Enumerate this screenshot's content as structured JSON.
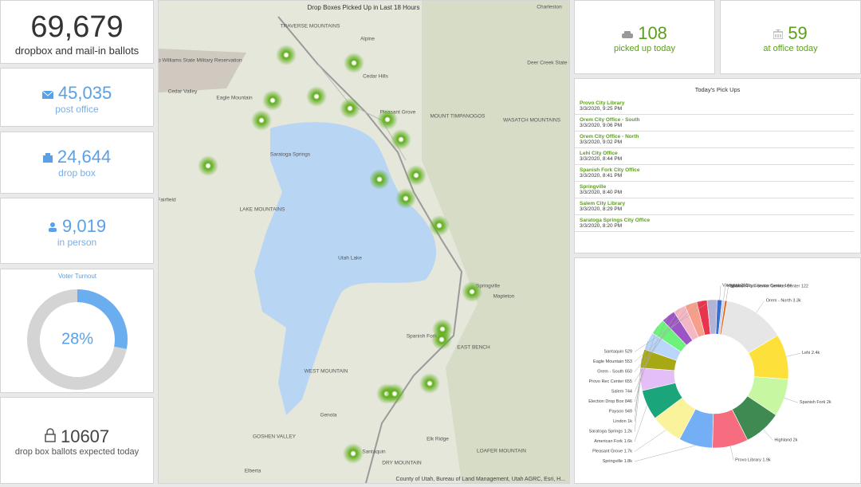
{
  "stats": {
    "total": {
      "value": "69,679",
      "label": "dropbox and mail-in ballots"
    },
    "post_office": {
      "value": "45,035",
      "label": "post office"
    },
    "drop_box": {
      "value": "24,644",
      "label": "drop box"
    },
    "in_person": {
      "value": "9,019",
      "label": "in person"
    },
    "expected": {
      "value": "10607",
      "label": "drop box ballots expected today"
    },
    "picked_up": {
      "value": "108",
      "label": "picked up today"
    },
    "at_office": {
      "value": "59",
      "label": "at office today"
    }
  },
  "turnout": {
    "title": "Voter Turnout",
    "value": 28,
    "value_label": "28%",
    "color": "#6aaef0",
    "track": "#d4d4d4"
  },
  "map": {
    "title": "Drop Boxes Picked Up in Last 18 Hours",
    "attribution": "County of Utah, Bureau of Land Management, Utah AGRC, Esri, H...",
    "labels": [
      "TRAVERSE MOUNTAINS",
      "Alpine",
      "Charleston",
      "Camp Williams State Military Reservation",
      "Cedar Valley",
      "Eagle Mountain",
      "Cedar Hills",
      "Deer Creek State Park",
      "Saratoga Springs",
      "Pleasant Grove",
      "MOUNT TIMPANOGOS",
      "WASATCH MOUNTAINS",
      "Fairfield",
      "LAKE MOUNTAINS",
      "Utah Lake",
      "Springville",
      "Mapleton",
      "Spanish Fork",
      "EAST BENCH",
      "WEST MOUNTAIN",
      "Elk Ridge",
      "Genola",
      "GOSHEN VALLEY",
      "Santaquin",
      "DRY MOUNTAIN",
      "LOAFER MOUNTAIN",
      "Elberta"
    ]
  },
  "pickups": {
    "title": "Today's Pick Ups",
    "items": [
      {
        "name": "Provo City Library",
        "time": "3/3/2020, 9:25 PM"
      },
      {
        "name": "Orem City Office - South",
        "time": "3/3/2020, 9:06 PM"
      },
      {
        "name": "Orem City Office - North",
        "time": "3/3/2020, 9:02 PM"
      },
      {
        "name": "Lehi City Office",
        "time": "3/3/2020, 8:44 PM"
      },
      {
        "name": "Spanish Fork City Office",
        "time": "3/3/2020, 8:41 PM"
      },
      {
        "name": "Springville",
        "time": "3/3/2020, 8:40 PM"
      },
      {
        "name": "Salem City Library",
        "time": "3/3/2020, 8:29 PM"
      },
      {
        "name": "Saratoga Springs City Office",
        "time": "3/3/2020, 8:20 PM"
      }
    ]
  },
  "chart_data": {
    "type": "donut",
    "categories": [
      "Orem - North",
      "Lehi",
      "Spanish Fork",
      "Highland",
      "Provo Library",
      "Springville",
      "Pleasant Grove",
      "American Fork",
      "Saratoga Springs",
      "Lindon",
      "Payson",
      "Election Drop Box",
      "Salem",
      "Provo Rec Center",
      "Orem - South",
      "Eagle Mountain",
      "Santaquin",
      "Vineyard",
      "Highland City Service Center",
      "Spanish Fork Senior Service Center"
    ],
    "values": [
      3300,
      2400,
      2000,
      2000,
      1900,
      1800,
      1700,
      1600,
      1200,
      1000,
      949,
      846,
      744,
      655,
      650,
      553,
      529,
      261,
      144,
      122
    ],
    "value_labels": [
      "3.3k",
      "2.4k",
      "2k",
      "2k",
      "1.9k",
      "1.8k",
      "1.7k",
      "1.6k",
      "1.2k",
      "1k",
      "949",
      "846",
      "744",
      "655",
      "650",
      "553",
      "529",
      "261",
      "144",
      "122"
    ],
    "colors": [
      "#e6e6e6",
      "#fde03a",
      "#c8f7a2",
      "#3f8a52",
      "#f76d80",
      "#74aef5",
      "#fbf39c",
      "#1aa57a",
      "#e4bff7",
      "#a8a815",
      "#b9d6fb",
      "#6df27c",
      "#9c55c4",
      "#f6b7c4",
      "#f79f8a",
      "#e8344c",
      "#b3b3d6",
      "#3b6fcf",
      "#c8d2ea",
      "#e86a1c"
    ]
  }
}
